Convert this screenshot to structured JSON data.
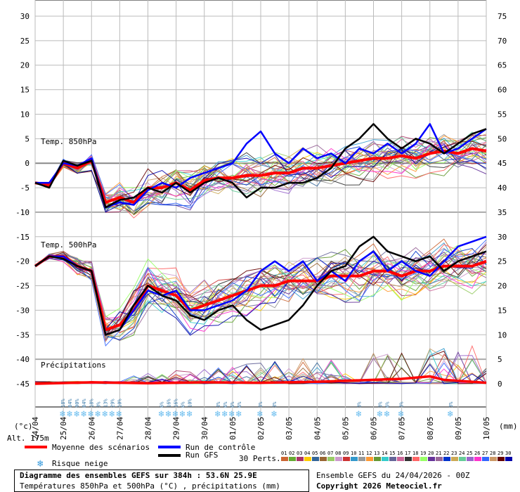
{
  "chart_data": {
    "type": "line",
    "title": "Diagramme des ensembles GEFS sur 384h : 53.6N 25.9E",
    "subtitle": "Températures 850hPa et 500hPa (°C) , précipitations (mm)",
    "ensemble_label": "Ensemble GEFS du 24/04/2026 - 00Z",
    "copyright": "Copyright 2026 Meteociel.fr",
    "altitude_label": "Alt. 175m",
    "left_axis_unit": "(°c)",
    "right_axis_unit": "(mm)",
    "left_ticks": [
      "30",
      "25",
      "20",
      "15",
      "10",
      "5",
      "0",
      "-5",
      "-10",
      "-15",
      "-20",
      "-25",
      "-30",
      "-35",
      "-40",
      "-45"
    ],
    "right_ticks": [
      "75",
      "70",
      "65",
      "60",
      "55",
      "50",
      "45",
      "40",
      "35",
      "30",
      "25",
      "20",
      "15",
      "10",
      "5",
      "0"
    ],
    "ylim": [
      -45,
      30
    ],
    "x_dates": [
      "24/04",
      "25/04",
      "26/04",
      "27/04",
      "28/04",
      "29/04",
      "30/04",
      "01/05",
      "02/05",
      "03/05",
      "04/05",
      "05/05",
      "06/05",
      "07/05",
      "08/05",
      "09/05",
      "10/05"
    ],
    "x_steps_hours": [
      0,
      384
    ],
    "panel_labels": {
      "t850": "Temp. 850hPa",
      "t500": "Temp. 500hPa",
      "precip": "Précipitations"
    },
    "snow_risk": [
      {
        "h": 12,
        "pct": "18%"
      },
      {
        "h": 15,
        "pct": "84%"
      },
      {
        "h": 18,
        "pct": "90%"
      },
      {
        "h": 21,
        "pct": "84%"
      },
      {
        "h": 24,
        "pct": "18%"
      },
      {
        "h": 27,
        "pct": "3%"
      },
      {
        "h": 30,
        "pct": "13%"
      },
      {
        "h": 33,
        "pct": "29%"
      },
      {
        "h": 36,
        "pct": "10%"
      },
      {
        "h": 54,
        "pct": "6%"
      },
      {
        "h": 57,
        "pct": "16%"
      },
      {
        "h": 60,
        "pct": "16%"
      },
      {
        "h": 63,
        "pct": "6%"
      },
      {
        "h": 66,
        "pct": "10%"
      },
      {
        "h": 78,
        "pct": "3%"
      },
      {
        "h": 81,
        "pct": "6%"
      },
      {
        "h": 84,
        "pct": "6%"
      },
      {
        "h": 87,
        "pct": "6%"
      },
      {
        "h": 96,
        "pct": "3%"
      },
      {
        "h": 102,
        "pct": "3%"
      },
      {
        "h": 138,
        "pct": "3%"
      },
      {
        "h": 147,
        "pct": "3%"
      },
      {
        "h": 150,
        "pct": "6%"
      },
      {
        "h": 156,
        "pct": "3%"
      },
      {
        "h": 177,
        "pct": "3%"
      }
    ],
    "series_850": [
      {
        "name": "Moyenne des scénarios",
        "color": "#ff0000",
        "values": [
          [
            0,
            -4
          ],
          [
            6,
            -4.5
          ],
          [
            12,
            0
          ],
          [
            18,
            -1
          ],
          [
            24,
            0.5
          ],
          [
            30,
            -8
          ],
          [
            36,
            -7
          ],
          [
            42,
            -8
          ],
          [
            48,
            -5
          ],
          [
            54,
            -5
          ],
          [
            60,
            -4
          ],
          [
            66,
            -5.5
          ],
          [
            72,
            -3.5
          ],
          [
            78,
            -3
          ],
          [
            84,
            -3
          ],
          [
            90,
            -2.5
          ],
          [
            96,
            -2.5
          ],
          [
            102,
            -2
          ],
          [
            108,
            -2
          ],
          [
            114,
            -1
          ],
          [
            120,
            -1
          ],
          [
            126,
            -0.5
          ],
          [
            132,
            0
          ],
          [
            138,
            0.5
          ],
          [
            144,
            1
          ],
          [
            150,
            1
          ],
          [
            156,
            1.5
          ],
          [
            162,
            1
          ],
          [
            168,
            2
          ],
          [
            174,
            2.5
          ],
          [
            180,
            2
          ],
          [
            186,
            3
          ],
          [
            192,
            2.5
          ]
        ]
      },
      {
        "name": "Run de contrôle",
        "color": "#0000ff",
        "values": [
          [
            0,
            -4
          ],
          [
            6,
            -4
          ],
          [
            12,
            0
          ],
          [
            18,
            -0.5
          ],
          [
            24,
            1
          ],
          [
            30,
            -9
          ],
          [
            36,
            -8
          ],
          [
            42,
            -8.5
          ],
          [
            48,
            -5.5
          ],
          [
            54,
            -4
          ],
          [
            60,
            -5
          ],
          [
            66,
            -3
          ],
          [
            72,
            -2
          ],
          [
            78,
            -1
          ],
          [
            84,
            0
          ],
          [
            90,
            4
          ],
          [
            96,
            6.5
          ],
          [
            102,
            2
          ],
          [
            108,
            0
          ],
          [
            114,
            3
          ],
          [
            120,
            1
          ],
          [
            126,
            2
          ],
          [
            132,
            0
          ],
          [
            138,
            3
          ],
          [
            144,
            2
          ],
          [
            150,
            4
          ],
          [
            156,
            2
          ],
          [
            162,
            4
          ],
          [
            168,
            8
          ],
          [
            174,
            2
          ],
          [
            180,
            3
          ],
          [
            186,
            5
          ],
          [
            192,
            7
          ]
        ]
      },
      {
        "name": "Run GFS",
        "color": "#000000",
        "values": [
          [
            0,
            -4
          ],
          [
            6,
            -5
          ],
          [
            12,
            0.5
          ],
          [
            18,
            -0.5
          ],
          [
            24,
            0.5
          ],
          [
            30,
            -9
          ],
          [
            36,
            -7.5
          ],
          [
            42,
            -7
          ],
          [
            48,
            -5
          ],
          [
            54,
            -6
          ],
          [
            60,
            -4
          ],
          [
            66,
            -6
          ],
          [
            72,
            -4
          ],
          [
            78,
            -3
          ],
          [
            84,
            -4
          ],
          [
            90,
            -7
          ],
          [
            96,
            -5
          ],
          [
            102,
            -5
          ],
          [
            108,
            -4
          ],
          [
            114,
            -4
          ],
          [
            120,
            -3
          ],
          [
            126,
            -1
          ],
          [
            132,
            3
          ],
          [
            138,
            5
          ],
          [
            144,
            8
          ],
          [
            150,
            5
          ],
          [
            156,
            3
          ],
          [
            162,
            5
          ],
          [
            168,
            4
          ],
          [
            174,
            2
          ],
          [
            180,
            4
          ],
          [
            186,
            6
          ],
          [
            192,
            7
          ]
        ]
      }
    ],
    "series_500": [
      {
        "name": "Moyenne des scénarios",
        "color": "#ff0000",
        "values": [
          [
            0,
            -21
          ],
          [
            6,
            -19
          ],
          [
            12,
            -19
          ],
          [
            18,
            -21
          ],
          [
            24,
            -22
          ],
          [
            30,
            -34
          ],
          [
            36,
            -33
          ],
          [
            42,
            -30
          ],
          [
            48,
            -25
          ],
          [
            54,
            -26
          ],
          [
            60,
            -27
          ],
          [
            66,
            -30
          ],
          [
            72,
            -29
          ],
          [
            78,
            -28
          ],
          [
            84,
            -27
          ],
          [
            90,
            -26
          ],
          [
            96,
            -25
          ],
          [
            102,
            -25
          ],
          [
            108,
            -24
          ],
          [
            114,
            -24
          ],
          [
            120,
            -24
          ],
          [
            126,
            -23
          ],
          [
            132,
            -23
          ],
          [
            138,
            -23
          ],
          [
            144,
            -22
          ],
          [
            150,
            -22
          ],
          [
            156,
            -23
          ],
          [
            162,
            -22
          ],
          [
            168,
            -22
          ],
          [
            174,
            -21
          ],
          [
            180,
            -21
          ],
          [
            186,
            -21
          ],
          [
            192,
            -20
          ]
        ]
      },
      {
        "name": "Run de contrôle",
        "color": "#0000ff",
        "values": [
          [
            0,
            -21
          ],
          [
            6,
            -19
          ],
          [
            12,
            -19
          ],
          [
            18,
            -21
          ],
          [
            24,
            -22
          ],
          [
            30,
            -35
          ],
          [
            36,
            -34
          ],
          [
            42,
            -30
          ],
          [
            48,
            -26
          ],
          [
            54,
            -27
          ],
          [
            60,
            -26
          ],
          [
            66,
            -30
          ],
          [
            72,
            -30
          ],
          [
            78,
            -29
          ],
          [
            84,
            -28
          ],
          [
            90,
            -26
          ],
          [
            96,
            -22
          ],
          [
            102,
            -20
          ],
          [
            108,
            -22
          ],
          [
            114,
            -20
          ],
          [
            120,
            -24
          ],
          [
            126,
            -22
          ],
          [
            132,
            -24
          ],
          [
            138,
            -20
          ],
          [
            144,
            -18
          ],
          [
            150,
            -22
          ],
          [
            156,
            -20
          ],
          [
            162,
            -22
          ],
          [
            168,
            -23
          ],
          [
            174,
            -20
          ],
          [
            180,
            -17
          ],
          [
            186,
            -16
          ],
          [
            192,
            -15
          ]
        ]
      },
      {
        "name": "Run GFS",
        "color": "#000000",
        "values": [
          [
            0,
            -21
          ],
          [
            6,
            -19
          ],
          [
            12,
            -19.5
          ],
          [
            18,
            -21
          ],
          [
            24,
            -22
          ],
          [
            30,
            -35
          ],
          [
            36,
            -34
          ],
          [
            42,
            -29
          ],
          [
            48,
            -25
          ],
          [
            54,
            -27
          ],
          [
            60,
            -28
          ],
          [
            66,
            -31
          ],
          [
            72,
            -32
          ],
          [
            78,
            -30
          ],
          [
            84,
            -29
          ],
          [
            90,
            -32
          ],
          [
            96,
            -34
          ],
          [
            102,
            -33
          ],
          [
            108,
            -32
          ],
          [
            114,
            -29
          ],
          [
            120,
            -25
          ],
          [
            126,
            -22
          ],
          [
            132,
            -21
          ],
          [
            138,
            -17
          ],
          [
            144,
            -15
          ],
          [
            150,
            -18
          ],
          [
            156,
            -19
          ],
          [
            162,
            -20
          ],
          [
            168,
            -19
          ],
          [
            174,
            -22
          ],
          [
            180,
            -20
          ],
          [
            186,
            -19
          ],
          [
            192,
            -18
          ]
        ]
      }
    ],
    "precip_mean": [
      [
        0,
        0
      ],
      [
        24,
        0.3
      ],
      [
        48,
        0.1
      ],
      [
        72,
        0.3
      ],
      [
        96,
        0.2
      ],
      [
        120,
        0.4
      ],
      [
        132,
        0.6
      ],
      [
        144,
        0.8
      ],
      [
        156,
        1.0
      ],
      [
        168,
        1.5
      ],
      [
        174,
        0.8
      ],
      [
        180,
        0.6
      ],
      [
        192,
        0.2
      ]
    ],
    "legend": {
      "mean": "Moyenne des scénarios",
      "control": "Run de contrôle",
      "gfs": "Run GFS",
      "snow": "Risque neige",
      "perts": "30 Perts."
    },
    "pert_numbers": [
      "01",
      "02",
      "03",
      "04",
      "05",
      "06",
      "07",
      "08",
      "09",
      "10",
      "11",
      "12",
      "13",
      "14",
      "15",
      "16",
      "17",
      "18",
      "19",
      "20",
      "21",
      "22",
      "23",
      "24",
      "25",
      "26",
      "27",
      "28",
      "29",
      "30"
    ],
    "pert_colors": [
      "#cc6633",
      "#66aa33",
      "#aa3366",
      "#ffcc00",
      "#336699",
      "#996633",
      "#99cc66",
      "#cc99cc",
      "#cc3333",
      "#3399cc",
      "#999999",
      "#ff9933",
      "#669933",
      "#33cccc",
      "#666699",
      "#cc6699",
      "#333333",
      "#ff6666",
      "#99ff66",
      "#663399",
      "#996699",
      "#0033cc",
      "#ccaa55",
      "#66cc99",
      "#9966cc",
      "#ff33cc",
      "#3366ff",
      "#cc9966",
      "#660000",
      "#0000aa"
    ]
  }
}
